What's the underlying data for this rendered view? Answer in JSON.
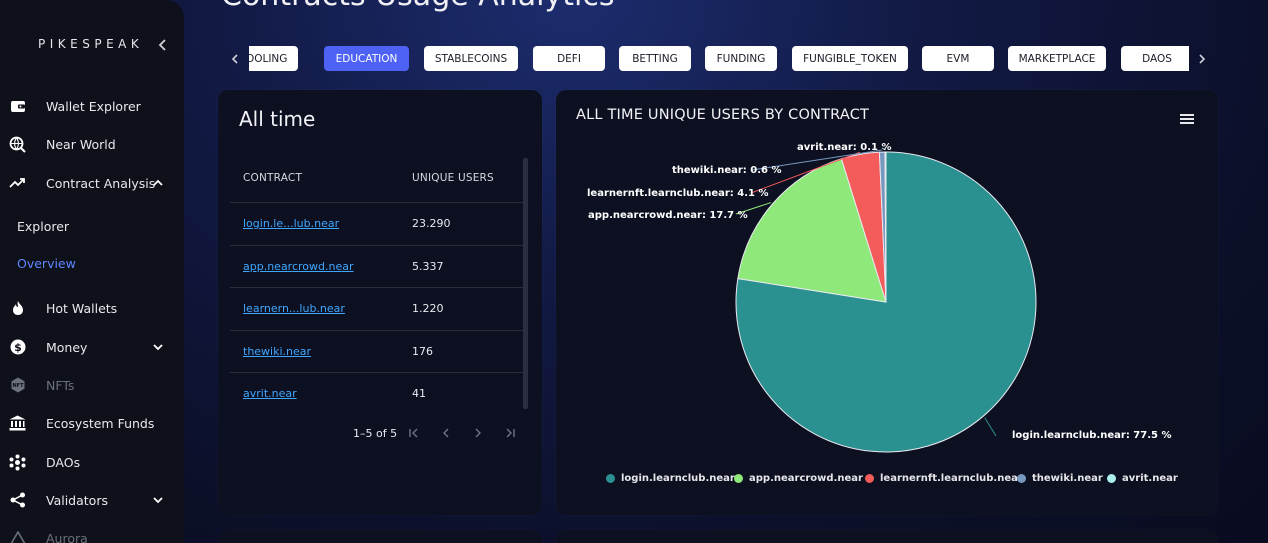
{
  "brand": "PIKESPEAK",
  "page": {
    "title": "Contracts Usage Analytics"
  },
  "sidebar": {
    "items": [
      {
        "label": "Wallet Explorer"
      },
      {
        "label": "Near World"
      },
      {
        "label": "Contract Analysis"
      },
      {
        "label": "Hot Wallets"
      },
      {
        "label": "Money"
      },
      {
        "label": "NFTs"
      },
      {
        "label": "Ecosystem Funds"
      },
      {
        "label": "DAOs"
      },
      {
        "label": "Validators"
      },
      {
        "label": "Aurora"
      }
    ],
    "sub_items": [
      {
        "label": "Explorer"
      },
      {
        "label": "Overview"
      }
    ]
  },
  "tabs": [
    "TOOLING",
    "EDUCATION",
    "STABLECOINS",
    "DEFI",
    "BETTING",
    "FUNDING",
    "FUNGIBLE_TOKEN",
    "EVM",
    "MARKETPLACE",
    "DAOS"
  ],
  "active_tab": "EDUCATION",
  "table_card": {
    "title": "All time",
    "headers": [
      "CONTRACT",
      "UNIQUE USERS"
    ],
    "rows": [
      [
        "login.le...lub.near",
        "23.290"
      ],
      [
        "app.nearcrowd.near",
        "5.337"
      ],
      [
        "learnern...lub.near",
        "1.220"
      ],
      [
        "thewiki.near",
        "176"
      ],
      [
        "avrit.near",
        "41"
      ]
    ],
    "pagination": "1–5 of 5"
  },
  "chart_card": {
    "title": "ALL TIME UNIQUE USERS BY CONTRACT"
  },
  "pie_labels": [
    "avrit.near: 0.1 %",
    "thewiki.near: 0.6 %",
    "learnernft.learnclub.near: 4.1 %",
    "app.nearcrowd.near: 17.7 %",
    "login.learnclub.near: 77.5 %"
  ],
  "colors": {
    "accent": "#4e63f6",
    "link": "#3fa7ff",
    "series": [
      "#2b9090",
      "#8ee87a",
      "#f45b5b",
      "#7798bf",
      "#aaeeee"
    ]
  },
  "chart_data": {
    "type": "pie",
    "title": "ALL TIME UNIQUE USERS BY CONTRACT",
    "series": [
      {
        "name": "login.learnclub.near",
        "value": 77.5
      },
      {
        "name": "app.nearcrowd.near",
        "value": 17.7
      },
      {
        "name": "learnernft.learnclub.near",
        "value": 4.1
      },
      {
        "name": "thewiki.near",
        "value": 0.6
      },
      {
        "name": "avrit.near",
        "value": 0.1
      }
    ],
    "legend": "bottom"
  }
}
